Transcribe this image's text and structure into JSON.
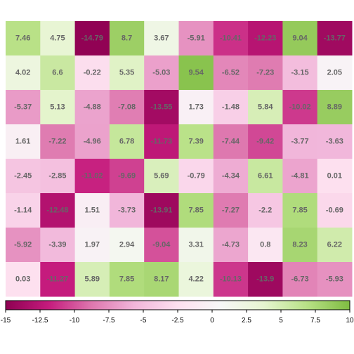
{
  "chart_data": {
    "type": "heatmap",
    "rows": [
      [
        7.46,
        4.75,
        -14.79,
        8.7,
        3.67,
        -5.91,
        -10.41,
        -12.23,
        9.04,
        -13.77
      ],
      [
        4.02,
        6.6,
        -0.22,
        5.35,
        -5.03,
        9.54,
        -6.52,
        -7.23,
        -3.15,
        2.05
      ],
      [
        -5.37,
        5.13,
        -4.88,
        -7.08,
        -13.55,
        1.73,
        -1.48,
        5.84,
        -10.02,
        8.89
      ],
      [
        1.61,
        -7.22,
        -4.96,
        6.78,
        -11.73,
        7.39,
        -7.44,
        -9.42,
        -3.77,
        -3.63
      ],
      [
        -2.45,
        -2.85,
        -11.02,
        -9.69,
        5.69,
        -0.79,
        -4.34,
        6.61,
        -4.81,
        0.01
      ],
      [
        -1.14,
        -12.48,
        1.51,
        -3.73,
        -13.91,
        7.85,
        -7.27,
        -2.2,
        7.85,
        -0.69
      ],
      [
        -5.92,
        -3.39,
        1.97,
        2.94,
        -9.04,
        3.31,
        -4.73,
        0.8,
        8.23,
        6.22
      ],
      [
        0.03,
        -11.27,
        5.89,
        7.85,
        8.17,
        4.22,
        -10.13,
        -13.9,
        -6.73,
        -5.93
      ]
    ],
    "color_scale": {
      "min": -15,
      "max": 10,
      "palette": "PiYG",
      "stops": [
        "#8e0152",
        "#c51b7d",
        "#de77ae",
        "#f1b6da",
        "#fde0ef",
        "#f7f7f7",
        "#e6f5d0",
        "#b8e186",
        "#7fbc41"
      ],
      "legend_position": "bottom",
      "ticks": [
        {
          "value": -15,
          "label": "-15"
        },
        {
          "value": -12.5,
          "label": "-12.5"
        },
        {
          "value": -10,
          "label": "-10"
        },
        {
          "value": -7.5,
          "label": "-7.5"
        },
        {
          "value": -5,
          "label": "-5"
        },
        {
          "value": -2.5,
          "label": "-2.5"
        },
        {
          "value": 0,
          "label": "0"
        },
        {
          "value": 2.5,
          "label": "2.5"
        },
        {
          "value": 5,
          "label": "5"
        },
        {
          "value": 7.5,
          "label": "7.5"
        },
        {
          "value": 10,
          "label": "10"
        }
      ]
    },
    "label_color": "#666666",
    "grid": false
  }
}
